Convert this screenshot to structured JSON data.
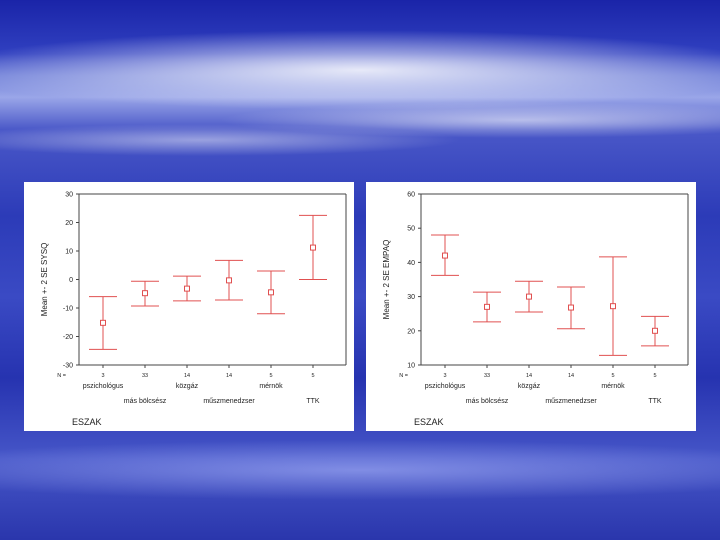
{
  "colors": {
    "error_bar": "#e05050",
    "axis": "#444444",
    "panel_bg": "#ffffff"
  },
  "chart_data": [
    {
      "type": "errorbar",
      "ylabel": "Mean +- 2 SE SYSQ",
      "footer": "ESZAK",
      "n_label": "N =",
      "ylim": [
        -30,
        30
      ],
      "yticks": [
        -30,
        -20,
        -10,
        0,
        10,
        20,
        30
      ],
      "categories": [
        "pszichológus",
        "más bölcsész",
        "közgáz",
        "műszmenedzser",
        "mérnök",
        "TTK"
      ],
      "n_values": [
        "3",
        "33",
        "14",
        "14",
        "5",
        "5"
      ],
      "mean": [
        -15.2,
        -4.8,
        -3.2,
        -0.3,
        -4.5,
        11.2
      ],
      "lower": [
        -24.5,
        -9.3,
        -7.5,
        -7.2,
        -12.0,
        0.0
      ],
      "upper": [
        -6.0,
        -0.6,
        1.2,
        6.7,
        3.0,
        22.5
      ]
    },
    {
      "type": "errorbar",
      "ylabel": "Mean +- 2 SE EMPAQ",
      "footer": "ESZAK",
      "n_label": "N =",
      "ylim": [
        10,
        60
      ],
      "yticks": [
        10,
        20,
        30,
        40,
        50,
        60
      ],
      "categories": [
        "pszichológus",
        "más bölcsész",
        "közgáz",
        "műszmenedzser",
        "mérnök",
        "TTK"
      ],
      "n_values": [
        "3",
        "33",
        "14",
        "14",
        "5",
        "5"
      ],
      "mean": [
        42.0,
        27.0,
        30.0,
        26.8,
        27.2,
        20.0
      ],
      "lower": [
        36.2,
        22.6,
        25.5,
        20.6,
        12.8,
        15.6
      ],
      "upper": [
        48.0,
        31.3,
        34.5,
        32.8,
        41.6,
        24.2
      ]
    }
  ]
}
